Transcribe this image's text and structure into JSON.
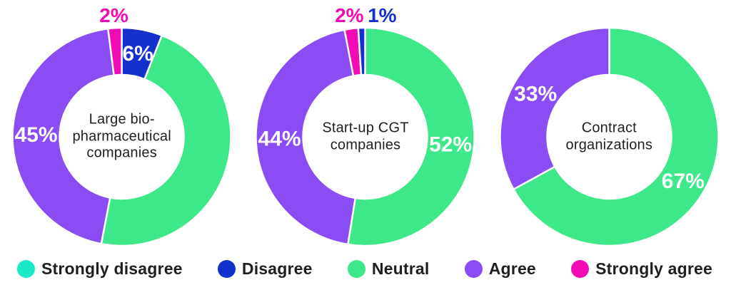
{
  "colors": {
    "strongly_disagree": "#1de8c6",
    "disagree": "#1331cd",
    "neutral": "#3ce887",
    "agree": "#8a4df3",
    "strongly_agree": "#f20ab5",
    "text_dark": "#1f1f1f",
    "inside_label": "#ffffff",
    "background": "#ffffff"
  },
  "legend": {
    "items": [
      {
        "label": "Strongly disagree",
        "color_key": "strongly_disagree"
      },
      {
        "label": "Disagree",
        "color_key": "disagree"
      },
      {
        "label": "Neutral",
        "color_key": "neutral"
      },
      {
        "label": "Agree",
        "color_key": "agree"
      },
      {
        "label": "Strongly agree",
        "color_key": "strongly_agree"
      }
    ]
  },
  "chart_data": [
    {
      "type": "pie",
      "subtype": "donut",
      "title": "Large bio-\npharmaceutical\ncompanies",
      "start_angle_deg": 0,
      "direction": "clockwise",
      "slices": [
        {
          "category": "Disagree",
          "color_key": "disagree",
          "value": 6,
          "label": "6%",
          "label_position": "inside"
        },
        {
          "category": "Neutral",
          "color_key": "neutral",
          "value": 47,
          "label": "",
          "label_position": "none"
        },
        {
          "category": "Agree",
          "color_key": "agree",
          "value": 45,
          "label": "45%",
          "label_position": "inside"
        },
        {
          "category": "Strongly agree",
          "color_key": "strongly_agree",
          "value": 2,
          "label": "2%",
          "label_position": "outside"
        }
      ]
    },
    {
      "type": "pie",
      "subtype": "donut",
      "title": "Start-up CGT\ncompanies",
      "start_angle_deg": 0,
      "direction": "clockwise",
      "slices": [
        {
          "category": "Neutral",
          "color_key": "neutral",
          "value": 52,
          "label": "52%",
          "label_position": "inside"
        },
        {
          "category": "Agree",
          "color_key": "agree",
          "value": 44,
          "label": "44%",
          "label_position": "inside"
        },
        {
          "category": "Strongly agree",
          "color_key": "strongly_agree",
          "value": 2,
          "label": "2%",
          "label_position": "outside"
        },
        {
          "category": "Disagree",
          "color_key": "disagree",
          "value": 1,
          "label": "1%",
          "label_position": "outside"
        }
      ]
    },
    {
      "type": "pie",
      "subtype": "donut",
      "title": "Contract\norganizations",
      "start_angle_deg": 0,
      "direction": "clockwise",
      "slices": [
        {
          "category": "Neutral",
          "color_key": "neutral",
          "value": 67,
          "label": "67%",
          "label_position": "inside"
        },
        {
          "category": "Agree",
          "color_key": "agree",
          "value": 33,
          "label": "33%",
          "label_position": "inside"
        }
      ]
    }
  ]
}
